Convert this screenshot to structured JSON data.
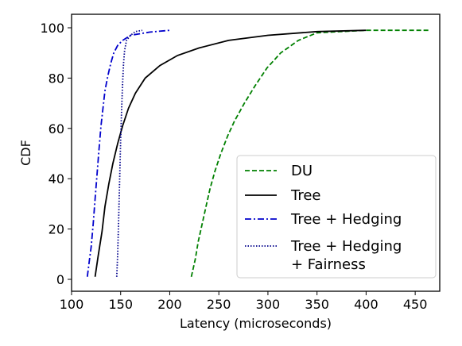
{
  "chart_data": {
    "type": "line",
    "xlabel": "Latency (microseconds)",
    "ylabel": "CDF",
    "xlim": [
      100,
      475
    ],
    "ylim": [
      0,
      100
    ],
    "xticks": [
      100,
      150,
      200,
      250,
      300,
      350,
      400,
      450
    ],
    "yticks": [
      0,
      20,
      40,
      60,
      80,
      100
    ],
    "grid": false,
    "legend_position": "lower-right",
    "series": [
      {
        "name": "DU",
        "color": "#008000",
        "dash": "dashed",
        "points": [
          [
            222,
            1
          ],
          [
            226,
            8
          ],
          [
            229,
            15
          ],
          [
            233,
            22
          ],
          [
            237,
            29
          ],
          [
            241,
            36
          ],
          [
            246,
            43
          ],
          [
            252,
            50
          ],
          [
            259,
            57
          ],
          [
            266,
            63
          ],
          [
            276,
            70
          ],
          [
            287,
            77
          ],
          [
            299,
            84
          ],
          [
            313,
            90
          ],
          [
            331,
            95
          ],
          [
            350,
            98
          ],
          [
            400,
            99
          ],
          [
            465,
            99
          ]
        ]
      },
      {
        "name": "Tree",
        "color": "#000000",
        "dash": "solid",
        "points": [
          [
            124,
            1
          ],
          [
            127,
            9
          ],
          [
            131,
            19
          ],
          [
            134,
            29
          ],
          [
            138,
            38
          ],
          [
            142,
            46
          ],
          [
            147,
            54
          ],
          [
            152,
            61
          ],
          [
            158,
            68
          ],
          [
            165,
            74
          ],
          [
            175,
            80
          ],
          [
            190,
            85
          ],
          [
            208,
            89
          ],
          [
            230,
            92
          ],
          [
            260,
            95
          ],
          [
            300,
            97
          ],
          [
            350,
            98.5
          ],
          [
            400,
            99
          ]
        ]
      },
      {
        "name": "Tree + Hedging",
        "color": "#0000cc",
        "dash": "dashdot",
        "points": [
          [
            116,
            1
          ],
          [
            118,
            7
          ],
          [
            120,
            13
          ],
          [
            122,
            22
          ],
          [
            124,
            32
          ],
          [
            126,
            42
          ],
          [
            128,
            52
          ],
          [
            130,
            61
          ],
          [
            132,
            68
          ],
          [
            134,
            75
          ],
          [
            137,
            81
          ],
          [
            140,
            86
          ],
          [
            143,
            90
          ],
          [
            147,
            93
          ],
          [
            152,
            95
          ],
          [
            160,
            97
          ],
          [
            180,
            98.3
          ],
          [
            200,
            99
          ]
        ]
      },
      {
        "name": "Tree + Hedging\n+ Fairness",
        "color": "#00008b",
        "dash": "dotted",
        "points": [
          [
            146,
            1
          ],
          [
            147,
            10
          ],
          [
            148,
            25
          ],
          [
            149,
            40
          ],
          [
            150,
            55
          ],
          [
            151,
            68
          ],
          [
            152,
            78
          ],
          [
            153,
            86
          ],
          [
            154,
            91
          ],
          [
            156,
            95
          ],
          [
            160,
            97
          ],
          [
            165,
            98.5
          ],
          [
            172,
            99
          ]
        ]
      }
    ]
  }
}
